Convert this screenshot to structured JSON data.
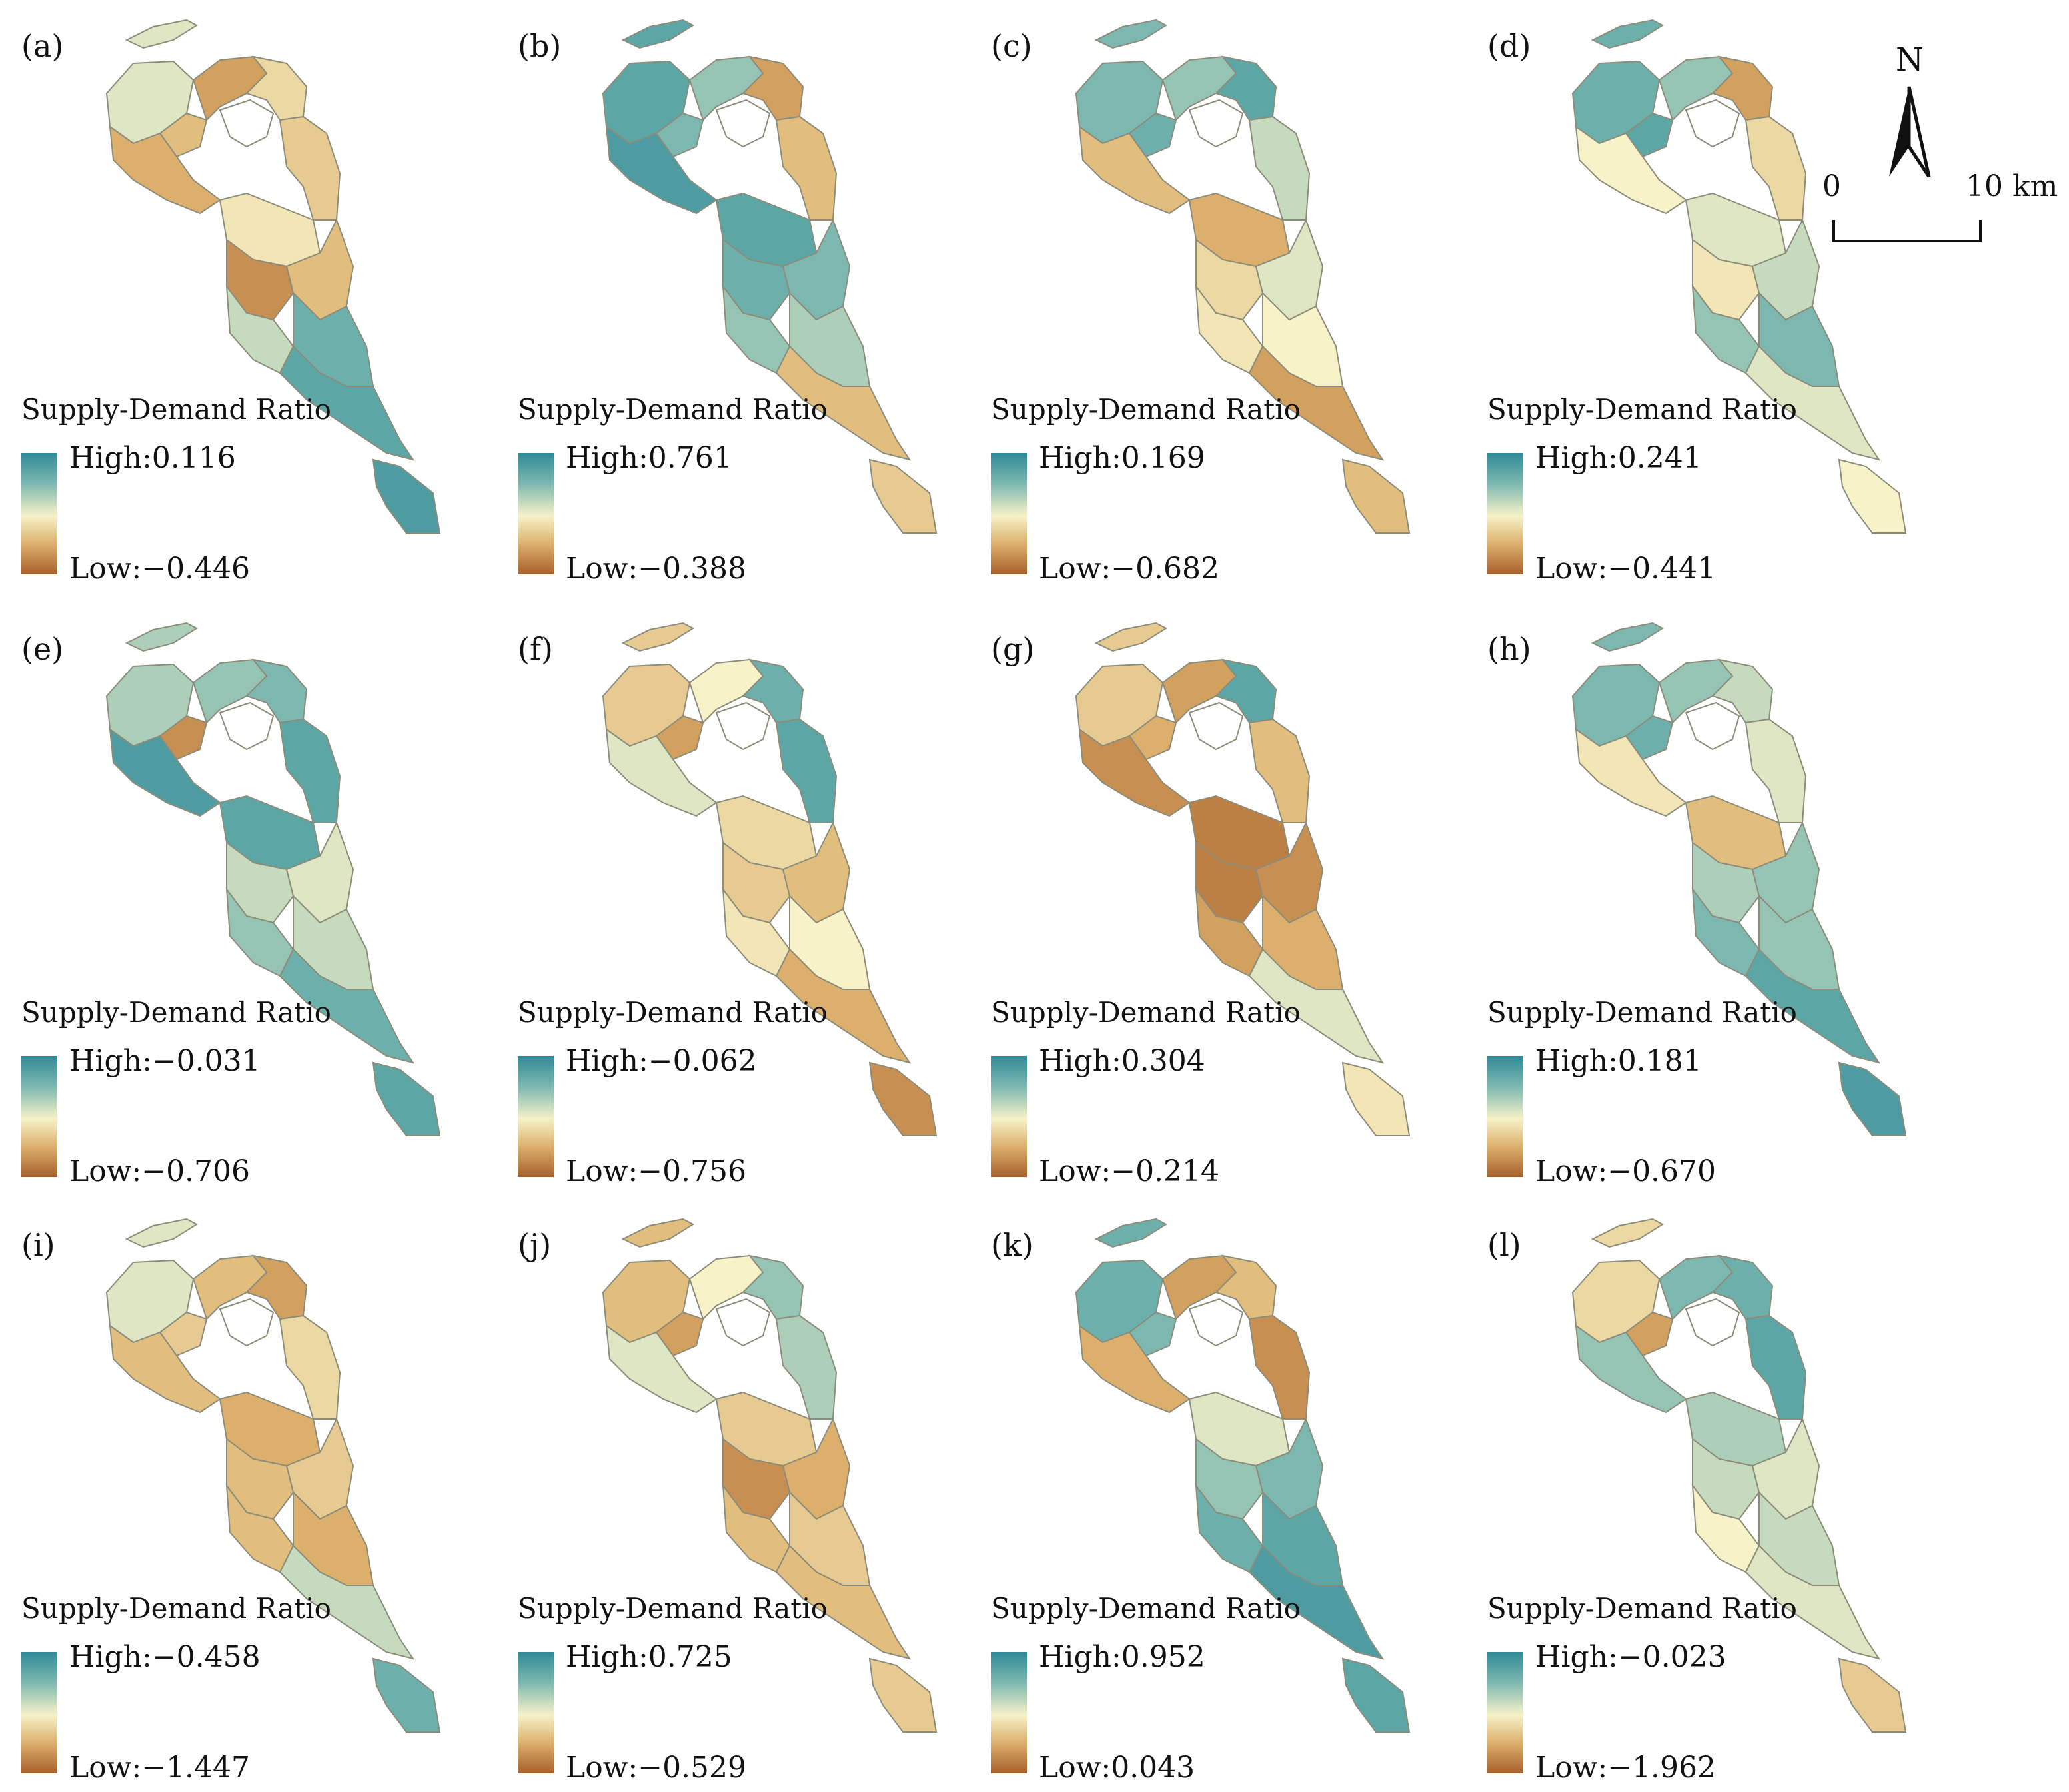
{
  "figure": {
    "legend_title": "Supply-Demand Ratio",
    "panels": [
      {
        "label": "(a)",
        "high": "High:0.116",
        "low": "Low:−0.446",
        "scheme": [
          0.55,
          0.3,
          0.2,
          0.4,
          0.35,
          0.25,
          0.45,
          0.15,
          0.3,
          0.6,
          0.8,
          0.85,
          0.9
        ]
      },
      {
        "label": "(b)",
        "high": "High:0.761",
        "low": "Low:−0.388",
        "scheme": [
          0.85,
          0.75,
          0.7,
          0.2,
          0.3,
          0.9,
          0.85,
          0.8,
          0.75,
          0.7,
          0.65,
          0.3,
          0.35
        ]
      },
      {
        "label": "(c)",
        "high": "High:0.169",
        "low": "Low:−0.682",
        "scheme": [
          0.75,
          0.8,
          0.7,
          0.85,
          0.6,
          0.3,
          0.25,
          0.4,
          0.55,
          0.45,
          0.5,
          0.2,
          0.3
        ]
      },
      {
        "label": "(d)",
        "high": "High:0.241",
        "low": "Low:−0.441",
        "scheme": [
          0.8,
          0.85,
          0.7,
          0.2,
          0.4,
          0.5,
          0.55,
          0.45,
          0.6,
          0.7,
          0.75,
          0.55,
          0.5
        ]
      },
      {
        "label": "(e)",
        "high": "High:−0.031",
        "low": "Low:−0.706",
        "scheme": [
          0.65,
          0.15,
          0.7,
          0.75,
          0.85,
          0.9,
          0.85,
          0.6,
          0.55,
          0.7,
          0.6,
          0.8,
          0.85
        ]
      },
      {
        "label": "(f)",
        "high": "High:−0.062",
        "low": "Low:−0.756",
        "scheme": [
          0.35,
          0.2,
          0.5,
          0.8,
          0.85,
          0.55,
          0.4,
          0.35,
          0.3,
          0.45,
          0.5,
          0.25,
          0.15
        ]
      },
      {
        "label": "(g)",
        "high": "High:0.304",
        "low": "Low:−0.214",
        "scheme": [
          0.35,
          0.25,
          0.2,
          0.85,
          0.3,
          0.15,
          0.1,
          0.1,
          0.15,
          0.2,
          0.25,
          0.55,
          0.45
        ]
      },
      {
        "label": "(h)",
        "high": "High:0.181",
        "low": "Low:−0.670",
        "scheme": [
          0.75,
          0.8,
          0.7,
          0.6,
          0.55,
          0.45,
          0.3,
          0.65,
          0.7,
          0.75,
          0.7,
          0.85,
          0.9
        ]
      },
      {
        "label": "(i)",
        "high": "High:−0.458",
        "low": "Low:−1.447",
        "scheme": [
          0.55,
          0.35,
          0.3,
          0.2,
          0.4,
          0.3,
          0.25,
          0.3,
          0.35,
          0.3,
          0.25,
          0.6,
          0.8
        ]
      },
      {
        "label": "(j)",
        "high": "High:0.725",
        "low": "Low:−0.529",
        "scheme": [
          0.3,
          0.2,
          0.5,
          0.7,
          0.65,
          0.55,
          0.35,
          0.15,
          0.25,
          0.3,
          0.35,
          0.3,
          0.35
        ]
      },
      {
        "label": "(k)",
        "high": "High:0.952",
        "low": "Low:0.043",
        "scheme": [
          0.8,
          0.75,
          0.2,
          0.3,
          0.15,
          0.25,
          0.55,
          0.7,
          0.75,
          0.8,
          0.85,
          0.9,
          0.85
        ]
      },
      {
        "label": "(l)",
        "high": "High:−0.023",
        "low": "Low:−1.962",
        "scheme": [
          0.4,
          0.2,
          0.75,
          0.8,
          0.85,
          0.7,
          0.65,
          0.6,
          0.55,
          0.5,
          0.6,
          0.55,
          0.35
        ]
      }
    ],
    "north_arrow": "N",
    "scale_start": "0",
    "scale_end": "10 km",
    "colors": {
      "high": "#2f8a98",
      "mid": "#f7f2c8",
      "low": "#a8602a",
      "border": "#8c8c7a"
    }
  }
}
